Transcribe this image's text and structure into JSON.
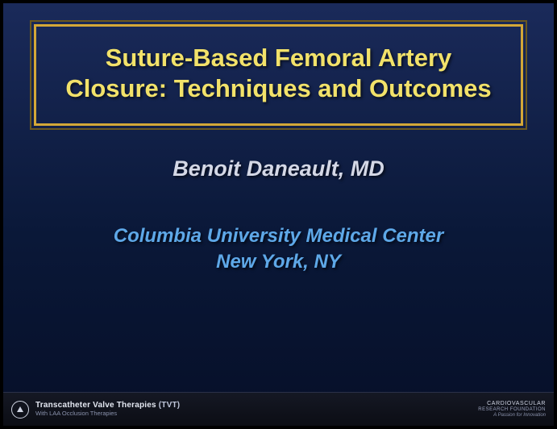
{
  "title": "Suture-Based Femoral Artery Closure: Techniques and Outcomes",
  "author": "Benoit Daneault, MD",
  "affiliation": {
    "line1": "Columbia University Medical Center",
    "line2": "New York, NY"
  },
  "footer": {
    "left_main": "Transcatheter Valve Therapies",
    "left_abbr": "(TVT)",
    "left_sub": "With LAA Occlusion Therapies",
    "right_top": "CARDIOVASCULAR",
    "right_mid": "RESEARCH FOUNDATION",
    "right_tag": "A Passion for Innovation"
  },
  "colors": {
    "title_text": "#f2e26a",
    "title_border": "#d4a838",
    "author_text": "#d4d8e6",
    "affil_text": "#5ea8e8",
    "bg_top": "#1a2a5a",
    "bg_bottom": "#060f28",
    "footer_bg": "#0b0d14",
    "footer_text": "#e4e8f2"
  }
}
